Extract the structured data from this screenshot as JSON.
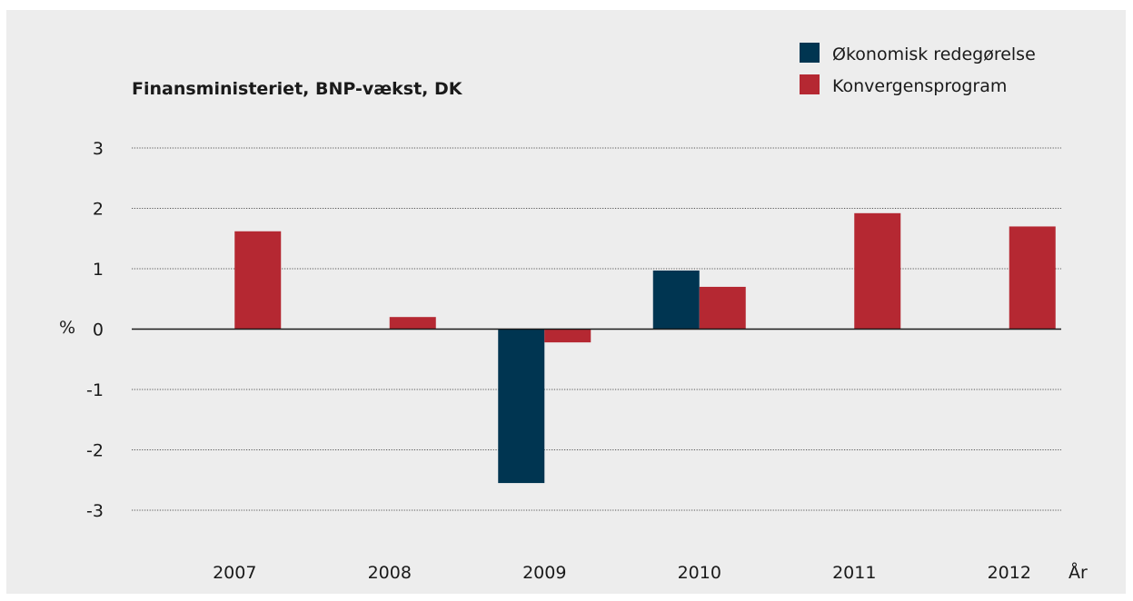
{
  "chart_data": {
    "type": "bar",
    "title": "Finansministeriet, BNP-vækst, DK",
    "ylabel": "%",
    "xlabel": "År",
    "ylim": [
      -3,
      3
    ],
    "yticks": [
      3,
      2,
      1,
      0,
      -1,
      -2,
      -3
    ],
    "categories": [
      "2007",
      "2008",
      "2009",
      "2010",
      "2011",
      "2012"
    ],
    "grid": true,
    "legend_position": "top-right",
    "series": [
      {
        "name": "Økonomisk redegørelse",
        "color": "#003551",
        "values": [
          null,
          null,
          -2.55,
          0.97,
          null,
          null
        ]
      },
      {
        "name": "Konvergensprogram",
        "color": "#b52832",
        "values": [
          1.62,
          0.2,
          -0.22,
          0.7,
          1.92,
          1.7
        ]
      }
    ]
  }
}
